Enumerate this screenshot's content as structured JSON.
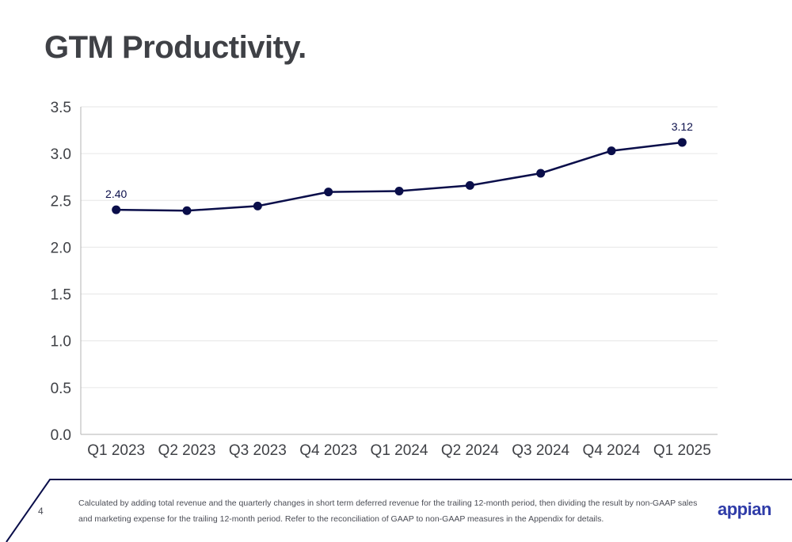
{
  "slide": {
    "title": "GTM Productivity.",
    "page_number": "4",
    "footnote": "Calculated by adding total revenue and the quarterly changes in short term deferred revenue for the trailing 12-month period, then dividing the result by non-GAAP sales and marketing expense for the trailing 12-month period. Refer to the reconciliation of GAAP to non-GAAP measures in the Appendix for details.",
    "logo_text": "appian"
  },
  "colors": {
    "line": "#0a0e4a",
    "grid": "#e6e6e6",
    "axis": "#b3b3b3",
    "accent": "#0a0e4a"
  },
  "chart_data": {
    "type": "line",
    "categories": [
      "Q1 2023",
      "Q2 2023",
      "Q3 2023",
      "Q4 2023",
      "Q1 2024",
      "Q2 2024",
      "Q3 2024",
      "Q4 2024",
      "Q1 2025"
    ],
    "values": [
      2.4,
      2.39,
      2.44,
      2.59,
      2.6,
      2.66,
      2.79,
      3.03,
      3.12
    ],
    "data_labels": [
      {
        "index": 0,
        "text": "2.40"
      },
      {
        "index": 8,
        "text": "3.12"
      }
    ],
    "yticks": [
      "0.0",
      "0.5",
      "1.0",
      "1.5",
      "2.0",
      "2.5",
      "3.0",
      "3.5"
    ],
    "ylim": [
      0,
      3.5
    ],
    "grid": true,
    "legend": "none"
  }
}
